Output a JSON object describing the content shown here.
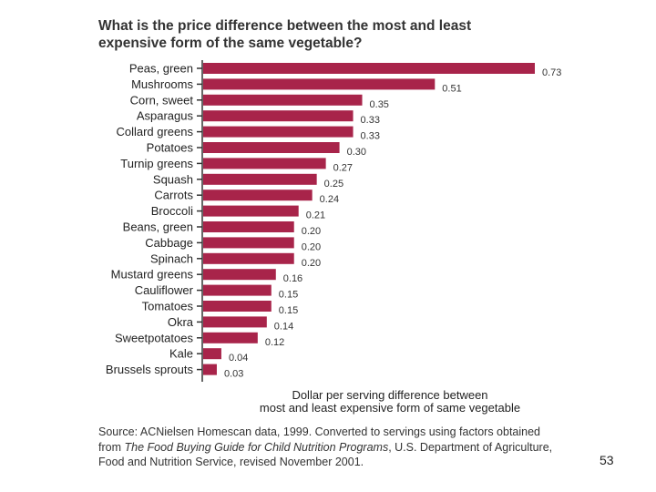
{
  "chart_data": {
    "type": "bar",
    "orientation": "horizontal",
    "title": "What is the price difference between the most and least expensive form of the same vegetable?",
    "title_lines": [
      "What is the price difference between the most and least",
      "expensive form of the same vegetable?"
    ],
    "categories": [
      "Peas, green",
      "Mushrooms",
      "Corn, sweet",
      "Asparagus",
      "Collard greens",
      "Potatoes",
      "Turnip greens",
      "Squash",
      "Carrots",
      "Broccoli",
      "Beans, green",
      "Cabbage",
      "Spinach",
      "Mustard greens",
      "Cauliflower",
      "Tomatoes",
      "Okra",
      "Sweetpotatoes",
      "Kale",
      "Brussels sprouts"
    ],
    "values": [
      0.73,
      0.51,
      0.35,
      0.33,
      0.33,
      0.3,
      0.27,
      0.25,
      0.24,
      0.21,
      0.2,
      0.2,
      0.2,
      0.16,
      0.15,
      0.15,
      0.14,
      0.12,
      0.04,
      0.03
    ],
    "value_labels": [
      "0.73",
      "0.51",
      "0.35",
      "0.33",
      "0.33",
      "0.30",
      "0.27",
      "0.25",
      "0.24",
      "0.21",
      "0.20",
      "0.20",
      "0.20",
      "0.16",
      "0.15",
      "0.15",
      "0.14",
      "0.12",
      "0.04",
      "0.03"
    ],
    "xlabel_lines": [
      "Dollar per serving difference between",
      "most and least expensive form of same vegetable"
    ],
    "xlim": [
      0,
      0.73
    ],
    "bar_color": "#a8244a",
    "grid": false
  },
  "source_lines": [
    {
      "pre": "Source: ACNielsen Homescan data, 1999. Converted to servings using factors obtained",
      "italic": "",
      "post": ""
    },
    {
      "pre": "from ",
      "italic": "The Food Buying Guide for Child Nutrition Programs",
      "post": ", U.S. Department of Agriculture,"
    },
    {
      "pre": "Food and Nutrition Service, revised November 2001.",
      "italic": "",
      "post": ""
    }
  ],
  "page_number": "53"
}
